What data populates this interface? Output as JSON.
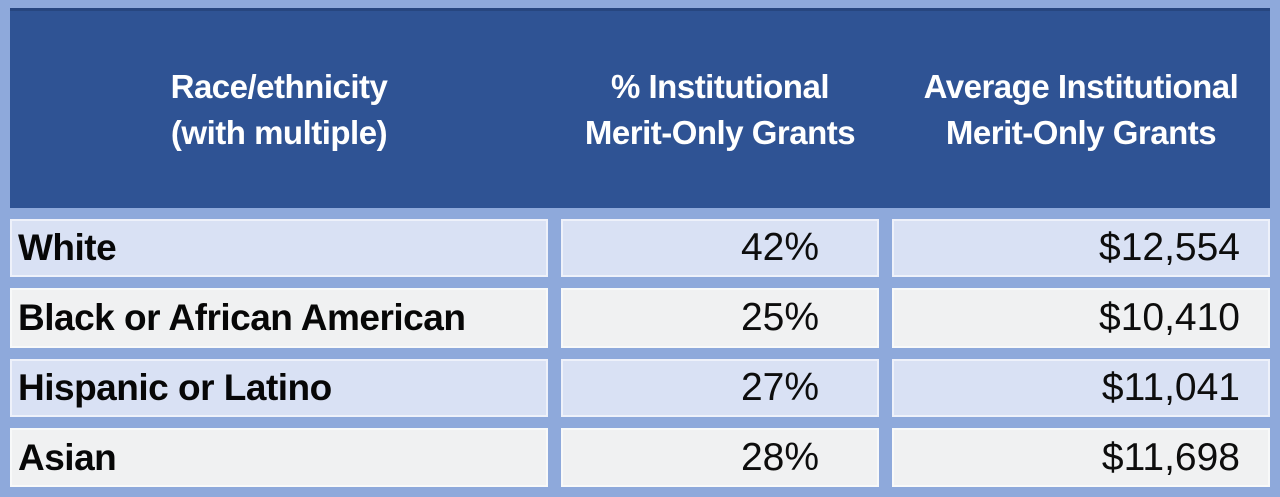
{
  "table": {
    "headers": [
      {
        "line1": "Race/ethnicity",
        "line2": "(with multiple)"
      },
      {
        "line1": "% Institutional",
        "line2": "Merit-Only Grants"
      },
      {
        "line1": "Average Institutional",
        "line2": "Merit-Only Grants"
      }
    ],
    "rows": [
      {
        "label": "White",
        "pct": "42%",
        "avg": "$12,554"
      },
      {
        "label": "Black or African American",
        "pct": "25%",
        "avg": "$10,410"
      },
      {
        "label": "Hispanic or Latino",
        "pct": "27%",
        "avg": "$11,041"
      },
      {
        "label": "Asian",
        "pct": "28%",
        "avg": "$11,698"
      }
    ]
  },
  "colors": {
    "header_bg": "#2F5394",
    "border_divider": "#8EA9DB",
    "row_light_blue": "#D9E1F4",
    "row_gray": "#F0F1F2",
    "header_text": "#FFFFFF",
    "body_text": "#0A0A0A"
  },
  "chart_data": {
    "type": "table",
    "title": "",
    "columns": [
      "Race/ethnicity (with multiple)",
      "% Institutional Merit-Only Grants",
      "Average Institutional Merit-Only Grants"
    ],
    "rows": [
      [
        "White",
        "42%",
        "$12,554"
      ],
      [
        "Black or African American",
        "25%",
        "$10,410"
      ],
      [
        "Hispanic or Latino",
        "27%",
        "$11,041"
      ],
      [
        "Asian",
        "28%",
        "$11,698"
      ]
    ],
    "pct_values": [
      42,
      25,
      27,
      28
    ],
    "avg_values": [
      12554,
      10410,
      11041,
      11698
    ]
  }
}
